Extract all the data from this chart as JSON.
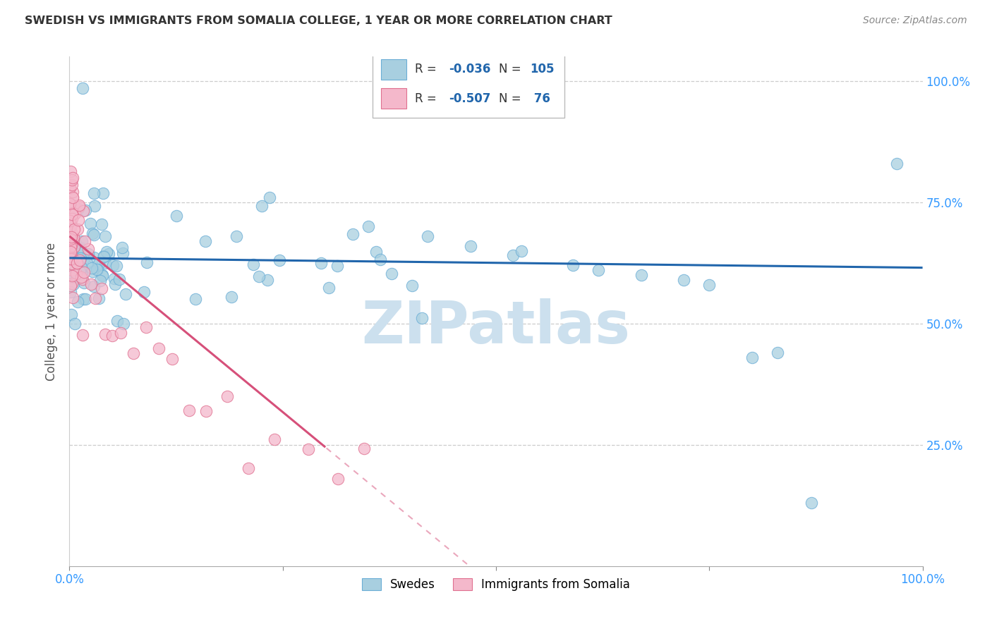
{
  "title": "SWEDISH VS IMMIGRANTS FROM SOMALIA COLLEGE, 1 YEAR OR MORE CORRELATION CHART",
  "source": "Source: ZipAtlas.com",
  "ylabel": "College, 1 year or more",
  "legend_r1": "R = -0.036",
  "legend_n1": "N = 105",
  "legend_r2": "R = -0.507",
  "legend_n2": "N =  76",
  "legend_label1": "Swedes",
  "legend_label2": "Immigrants from Somalia",
  "watermark": "ZIPatlas",
  "blue_scatter_color": "#a8cfe0",
  "blue_scatter_edge": "#6baed6",
  "pink_scatter_color": "#f4b8cb",
  "pink_scatter_edge": "#e07090",
  "blue_line_color": "#2166ac",
  "pink_line_color": "#d6507a",
  "grid_color": "#cccccc",
  "axis_label_color": "#3399ff",
  "ylabel_color": "#555555",
  "title_color": "#333333",
  "source_color": "#888888",
  "watermark_color": "#cce0ee"
}
